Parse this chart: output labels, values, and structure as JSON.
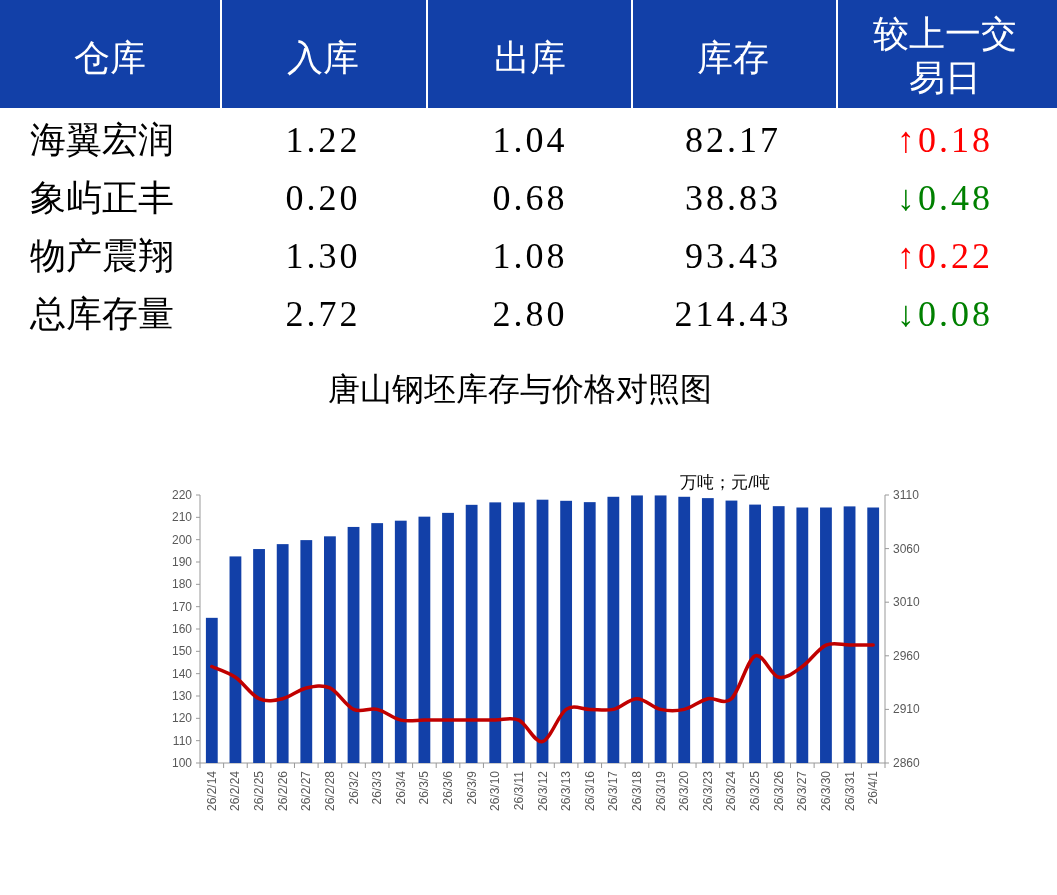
{
  "chart_data": [
    {
      "type": "other",
      "annotations": [
        "仓库",
        "入库",
        "出库",
        "库存",
        "较上一交易日",
        "海翼宏润",
        "1.22",
        "1.04",
        "82.17",
        "↑0.18",
        "象屿正丰",
        "0.20",
        "0.68",
        "38.83",
        "↓0.48",
        "物产震翔",
        "1.30",
        "1.08",
        "93.43",
        "↑0.22",
        "总库存量",
        "2.72",
        "2.80",
        "214.43",
        "↓0.08"
      ],
      "colors": [
        "#ff0000",
        "#008000",
        "#ff0000",
        "#008000"
      ]
    },
    {
      "type": "bar",
      "title": "唐山钢坯库存与价格对照图",
      "annotations": [
        "万吨；元/吨"
      ],
      "categories": [
        "26/2/14",
        "26/2/24",
        "26/2/25",
        "26/2/26",
        "26/2/27",
        "26/2/28",
        "26/3/2",
        "26/3/3",
        "26/3/4",
        "26/3/5",
        "26/3/6",
        "26/3/9",
        "26/3/10",
        "26/3/11",
        "26/3/12",
        "26/3/13",
        "26/3/16",
        "26/3/17",
        "26/3/18",
        "26/3/19",
        "26/3/20",
        "26/3/23",
        "26/3/24",
        "26/3/25",
        "26/3/26",
        "26/3/27",
        "26/3/30",
        "26/3/31",
        "26/4/1"
      ],
      "series": [
        {
          "type": "bar",
          "color": "#1240a8",
          "values": [
            165,
            192.5,
            195.8,
            198,
            199.8,
            201.5,
            205.7,
            207.4,
            208.5,
            210.3,
            212,
            215.6,
            216.7,
            216.7,
            217.9,
            217.4,
            216.8,
            219.2,
            219.8,
            219.8,
            219.2,
            218.6,
            217.5,
            215.7,
            215,
            214.4,
            214.4,
            214.9,
            214.4
          ]
        },
        {
          "type": "line",
          "axis": "y2",
          "color": "#c00000",
          "values": [
            2950,
            2940,
            2920,
            2920,
            2930,
            2930,
            2910,
            2910,
            2900,
            2900,
            2900,
            2900,
            2900,
            2900,
            2880,
            2910,
            2910,
            2910,
            2920,
            2910,
            2910,
            2920,
            2920,
            2960,
            2940,
            2950,
            2970,
            2970,
            2970
          ]
        }
      ],
      "ylim": [
        100,
        220
      ],
      "yticks": [
        100,
        110,
        120,
        130,
        140,
        150,
        160,
        170,
        180,
        190,
        200,
        210,
        220
      ],
      "y2lim": [
        2860,
        3110
      ],
      "y2ticks": [
        2860,
        2910,
        2960,
        3010,
        3060,
        3110
      ],
      "line_style": "solid"
    }
  ]
}
